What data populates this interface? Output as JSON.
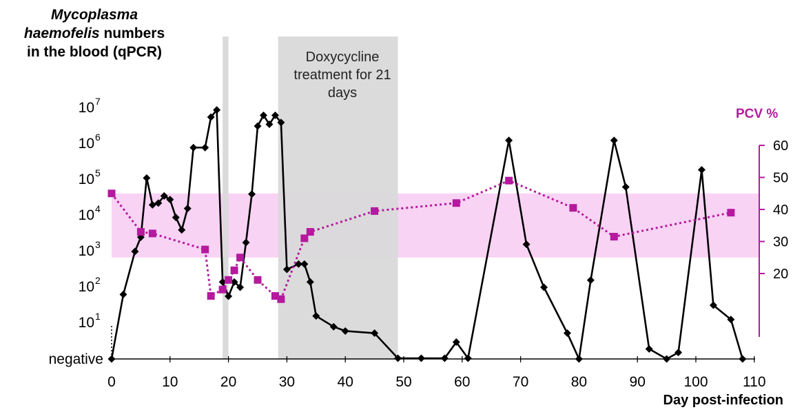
{
  "chart_data": {
    "type": "line",
    "y_title_part1": "Mycoplasma",
    "y_title_part2": "haemofelis",
    "y_title_part3": "numbers",
    "y_title_part4": "in the blood (qPCR)",
    "y2_title": "PCV %",
    "xlabel": "Day post-infection",
    "treatment_label": "Doxycycline treatment for 21 days",
    "xlim": [
      0,
      110
    ],
    "x_ticks": [
      0,
      10,
      20,
      30,
      40,
      50,
      60,
      70,
      80,
      90,
      100,
      110
    ],
    "y_scale": "log",
    "y_ticks": [
      {
        "base": "10",
        "exp": "7"
      },
      {
        "base": "10",
        "exp": "6"
      },
      {
        "base": "10",
        "exp": "5"
      },
      {
        "base": "10",
        "exp": "4"
      },
      {
        "base": "10",
        "exp": "3"
      },
      {
        "base": "10",
        "exp": "2"
      },
      {
        "base": "10",
        "exp": "1"
      },
      {
        "base": "negative",
        "exp": ""
      }
    ],
    "y2_ticks": [
      20,
      30,
      40,
      50,
      60
    ],
    "y2_range": [
      20,
      60
    ],
    "shaded_bands": [
      {
        "x": [
          19,
          20
        ],
        "color": "#d9d9d9"
      },
      {
        "x": [
          28.5,
          49
        ],
        "color": "#d9d9d9"
      }
    ],
    "reference_band_pcv": [
      25,
      45
    ],
    "reference_band_color": "#f8d3f4",
    "series": [
      {
        "axis": "left",
        "color": "#000000",
        "marker": "diamond",
        "note": "log10 copies; 0 = negative",
        "x": [
          0,
          2,
          4,
          5,
          6,
          7,
          8,
          9,
          10,
          11,
          12,
          13,
          14,
          16,
          17,
          18,
          19,
          20,
          21,
          22,
          23,
          24,
          25,
          26,
          27,
          28,
          29,
          30,
          32,
          33,
          34,
          35,
          38,
          40,
          45,
          49,
          53,
          57,
          59,
          61,
          68,
          71,
          74,
          78,
          80,
          82,
          86,
          88,
          92,
          95,
          97,
          101,
          103,
          106,
          108
        ],
        "y": [
          0,
          1.8,
          3.0,
          3.4,
          5.05,
          4.3,
          4.35,
          4.55,
          4.45,
          3.95,
          3.6,
          4.2,
          5.9,
          5.9,
          6.75,
          6.95,
          2.15,
          1.75,
          2.15,
          2.0,
          3.25,
          4.6,
          6.5,
          6.8,
          6.55,
          6.8,
          6.6,
          2.5,
          2.65,
          2.65,
          2.15,
          1.2,
          0.9,
          0.78,
          0.72,
          0.02,
          0.02,
          0.02,
          0.47,
          0.02,
          6.1,
          3.2,
          2.0,
          0.72,
          0.0,
          2.2,
          6.1,
          4.8,
          0.28,
          0.0,
          0.18,
          5.28,
          1.5,
          1.1,
          0.0
        ]
      },
      {
        "axis": "right",
        "color": "#b5199e",
        "marker": "square",
        "line_style": "dotted",
        "x": [
          0,
          5,
          7,
          16,
          17,
          19,
          20,
          21,
          22,
          25,
          28,
          29,
          33,
          34,
          45,
          59,
          68,
          79,
          86,
          106
        ],
        "y": [
          45,
          33,
          32.5,
          27.5,
          13,
          15,
          18,
          21,
          25,
          18,
          13,
          12,
          31,
          33,
          39.5,
          42,
          49,
          40.5,
          31.5,
          39
        ]
      }
    ]
  }
}
